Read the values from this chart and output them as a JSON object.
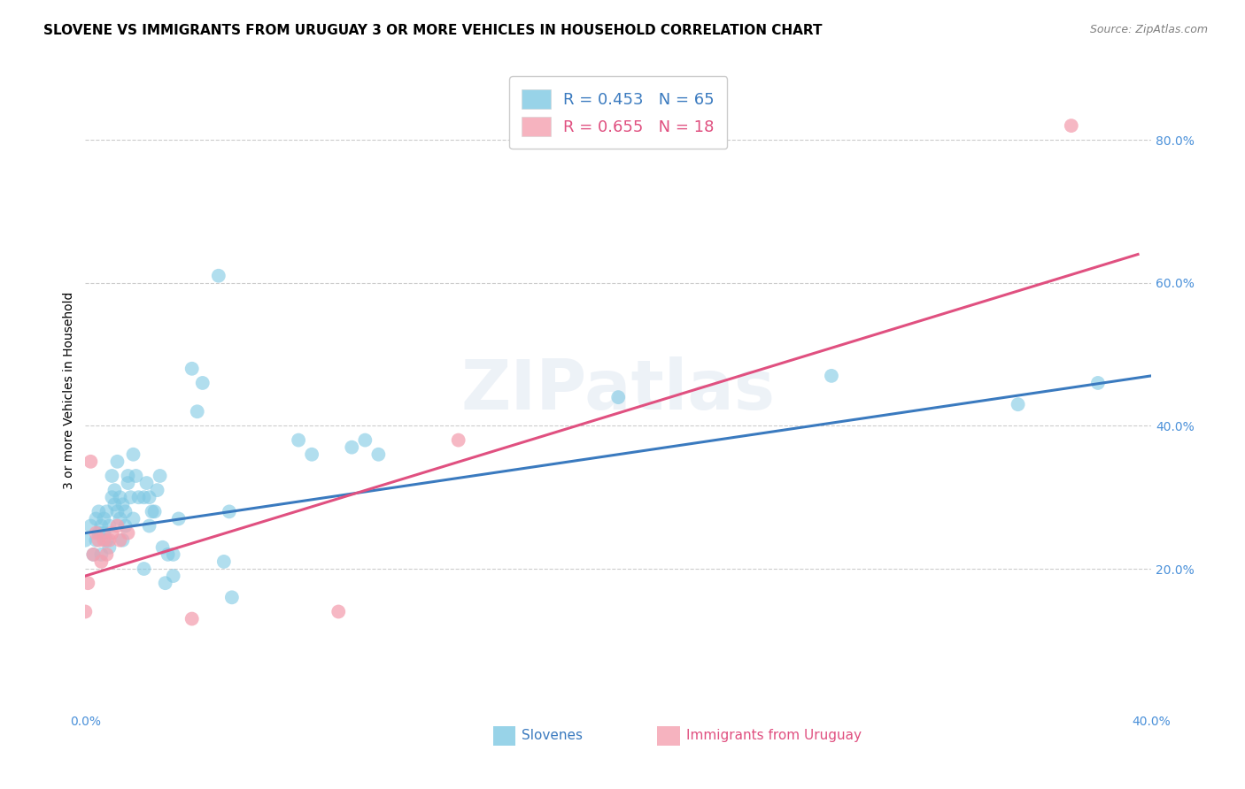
{
  "title": "SLOVENE VS IMMIGRANTS FROM URUGUAY 3 OR MORE VEHICLES IN HOUSEHOLD CORRELATION CHART",
  "source": "Source: ZipAtlas.com",
  "ylabel": "3 or more Vehicles in Household",
  "xlim": [
    0.0,
    0.4
  ],
  "ylim": [
    0.0,
    0.9
  ],
  "xticks": [
    0.0,
    0.05,
    0.1,
    0.15,
    0.2,
    0.25,
    0.3,
    0.35,
    0.4
  ],
  "yticks": [
    0.0,
    0.2,
    0.4,
    0.6,
    0.8
  ],
  "legend_R_blue": "0.453",
  "legend_N_blue": "65",
  "legend_R_pink": "0.655",
  "legend_N_pink": "18",
  "blue_color": "#7ec8e3",
  "pink_color": "#f4a0b0",
  "blue_line_color": "#3a7abf",
  "pink_line_color": "#e05080",
  "tick_color": "#4a90d9",
  "watermark": "ZIPatlas",
  "blue_scatter": [
    [
      0.0,
      0.24
    ],
    [
      0.002,
      0.26
    ],
    [
      0.003,
      0.22
    ],
    [
      0.004,
      0.24
    ],
    [
      0.004,
      0.27
    ],
    [
      0.005,
      0.25
    ],
    [
      0.005,
      0.28
    ],
    [
      0.006,
      0.26
    ],
    [
      0.006,
      0.22
    ],
    [
      0.007,
      0.25
    ],
    [
      0.007,
      0.27
    ],
    [
      0.008,
      0.28
    ],
    [
      0.008,
      0.24
    ],
    [
      0.009,
      0.26
    ],
    [
      0.009,
      0.23
    ],
    [
      0.01,
      0.33
    ],
    [
      0.01,
      0.3
    ],
    [
      0.011,
      0.29
    ],
    [
      0.011,
      0.31
    ],
    [
      0.012,
      0.35
    ],
    [
      0.012,
      0.28
    ],
    [
      0.013,
      0.27
    ],
    [
      0.013,
      0.3
    ],
    [
      0.014,
      0.29
    ],
    [
      0.014,
      0.24
    ],
    [
      0.015,
      0.28
    ],
    [
      0.015,
      0.26
    ],
    [
      0.016,
      0.33
    ],
    [
      0.016,
      0.32
    ],
    [
      0.017,
      0.3
    ],
    [
      0.018,
      0.27
    ],
    [
      0.018,
      0.36
    ],
    [
      0.019,
      0.33
    ],
    [
      0.02,
      0.3
    ],
    [
      0.022,
      0.3
    ],
    [
      0.022,
      0.2
    ],
    [
      0.023,
      0.32
    ],
    [
      0.024,
      0.26
    ],
    [
      0.024,
      0.3
    ],
    [
      0.025,
      0.28
    ],
    [
      0.026,
      0.28
    ],
    [
      0.027,
      0.31
    ],
    [
      0.028,
      0.33
    ],
    [
      0.029,
      0.23
    ],
    [
      0.03,
      0.18
    ],
    [
      0.031,
      0.22
    ],
    [
      0.033,
      0.19
    ],
    [
      0.033,
      0.22
    ],
    [
      0.035,
      0.27
    ],
    [
      0.04,
      0.48
    ],
    [
      0.042,
      0.42
    ],
    [
      0.044,
      0.46
    ],
    [
      0.05,
      0.61
    ],
    [
      0.052,
      0.21
    ],
    [
      0.054,
      0.28
    ],
    [
      0.055,
      0.16
    ],
    [
      0.08,
      0.38
    ],
    [
      0.085,
      0.36
    ],
    [
      0.1,
      0.37
    ],
    [
      0.105,
      0.38
    ],
    [
      0.11,
      0.36
    ],
    [
      0.2,
      0.44
    ],
    [
      0.28,
      0.47
    ],
    [
      0.35,
      0.43
    ],
    [
      0.38,
      0.46
    ]
  ],
  "pink_scatter": [
    [
      0.0,
      0.14
    ],
    [
      0.001,
      0.18
    ],
    [
      0.002,
      0.35
    ],
    [
      0.003,
      0.22
    ],
    [
      0.004,
      0.25
    ],
    [
      0.005,
      0.24
    ],
    [
      0.006,
      0.21
    ],
    [
      0.007,
      0.24
    ],
    [
      0.008,
      0.22
    ],
    [
      0.009,
      0.24
    ],
    [
      0.01,
      0.25
    ],
    [
      0.012,
      0.26
    ],
    [
      0.013,
      0.24
    ],
    [
      0.016,
      0.25
    ],
    [
      0.04,
      0.13
    ],
    [
      0.095,
      0.14
    ],
    [
      0.14,
      0.38
    ],
    [
      0.37,
      0.82
    ]
  ],
  "blue_reg": [
    0.0,
    0.4,
    0.25,
    0.47
  ],
  "pink_reg": [
    0.0,
    0.395,
    0.19,
    0.64
  ],
  "background_color": "#ffffff",
  "grid_color": "#cccccc",
  "title_fontsize": 11,
  "axis_label_fontsize": 10,
  "tick_fontsize": 10
}
